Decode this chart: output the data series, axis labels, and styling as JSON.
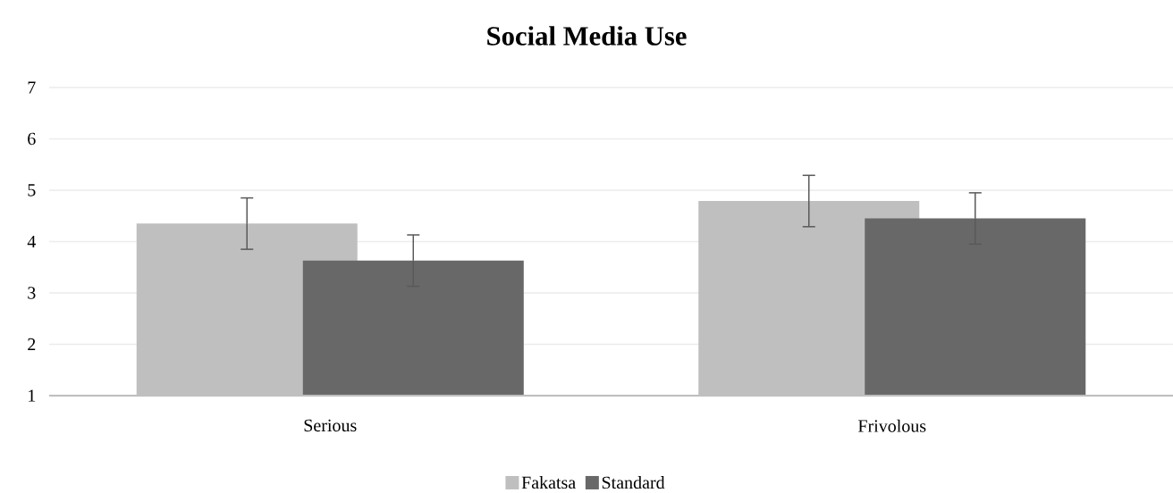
{
  "chart_data": {
    "type": "bar",
    "title": "Social Media Use",
    "categories": [
      "Serious",
      "Frivolous"
    ],
    "series": [
      {
        "name": "Fakatsa",
        "color": "#bfbfbf",
        "values": [
          4.35,
          4.79
        ],
        "errors": [
          0.5,
          0.5
        ]
      },
      {
        "name": "Standard",
        "color": "#686868",
        "values": [
          3.63,
          4.45
        ],
        "errors": [
          0.5,
          0.5
        ]
      }
    ],
    "ylim": [
      1,
      7
    ],
    "yticks": [
      1,
      2,
      3,
      4,
      5,
      6,
      7
    ],
    "grid": "y",
    "legend": "bottom"
  }
}
